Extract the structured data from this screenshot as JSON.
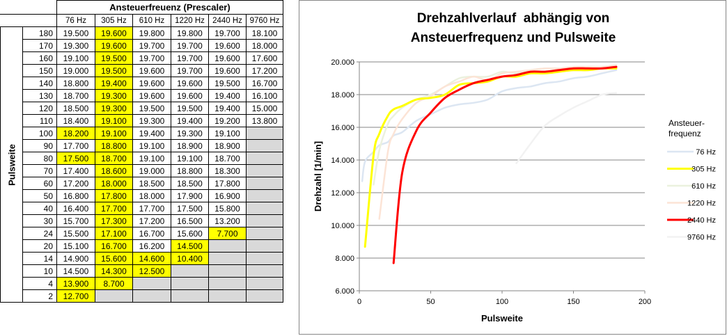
{
  "table": {
    "title": "Ansteuerfreuenz (Prescaler)",
    "row_label": "Pulsweite",
    "frequencies": [
      "76 Hz",
      "305 Hz",
      "610 Hz",
      "1220 Hz",
      "2440 Hz",
      "9760 Hz"
    ],
    "rows": [
      {
        "pw": "180",
        "cells": [
          [
            "19.500",
            ""
          ],
          [
            "19.600",
            "y"
          ],
          [
            "19.800",
            ""
          ],
          [
            "19.800",
            ""
          ],
          [
            "19.700",
            ""
          ],
          [
            "18.100",
            ""
          ]
        ]
      },
      {
        "pw": "170",
        "cells": [
          [
            "19.300",
            ""
          ],
          [
            "19.600",
            "y"
          ],
          [
            "19.700",
            ""
          ],
          [
            "19.700",
            ""
          ],
          [
            "19.600",
            ""
          ],
          [
            "18.000",
            ""
          ]
        ]
      },
      {
        "pw": "160",
        "cells": [
          [
            "19.100",
            ""
          ],
          [
            "19.500",
            "y"
          ],
          [
            "19.700",
            ""
          ],
          [
            "19.700",
            ""
          ],
          [
            "19.600",
            ""
          ],
          [
            "17.600",
            ""
          ]
        ]
      },
      {
        "pw": "150",
        "cells": [
          [
            "19.000",
            ""
          ],
          [
            "19.500",
            "y"
          ],
          [
            "19.600",
            ""
          ],
          [
            "19.700",
            ""
          ],
          [
            "19.600",
            ""
          ],
          [
            "17.200",
            ""
          ]
        ]
      },
      {
        "pw": "140",
        "cells": [
          [
            "18.800",
            ""
          ],
          [
            "19.400",
            "y"
          ],
          [
            "19.600",
            ""
          ],
          [
            "19.600",
            ""
          ],
          [
            "19.500",
            ""
          ],
          [
            "16.700",
            ""
          ]
        ]
      },
      {
        "pw": "130",
        "cells": [
          [
            "18.700",
            ""
          ],
          [
            "19.300",
            "y"
          ],
          [
            "19.600",
            ""
          ],
          [
            "19.600",
            ""
          ],
          [
            "19.400",
            ""
          ],
          [
            "16.100",
            ""
          ]
        ]
      },
      {
        "pw": "120",
        "cells": [
          [
            "18.500",
            ""
          ],
          [
            "19.300",
            "y"
          ],
          [
            "19.500",
            ""
          ],
          [
            "19.500",
            ""
          ],
          [
            "19.400",
            ""
          ],
          [
            "15.000",
            ""
          ]
        ]
      },
      {
        "pw": "110",
        "cells": [
          [
            "18.400",
            ""
          ],
          [
            "19.100",
            "y"
          ],
          [
            "19.300",
            ""
          ],
          [
            "19.400",
            ""
          ],
          [
            "19.200",
            ""
          ],
          [
            "13.800",
            ""
          ]
        ]
      },
      {
        "pw": "100",
        "cells": [
          [
            "18.200",
            "y"
          ],
          [
            "19.100",
            "y"
          ],
          [
            "19.400",
            ""
          ],
          [
            "19.300",
            ""
          ],
          [
            "19.100",
            ""
          ],
          [
            "",
            "g"
          ]
        ]
      },
      {
        "pw": "90",
        "cells": [
          [
            "17.700",
            ""
          ],
          [
            "18.800",
            "y"
          ],
          [
            "19.100",
            ""
          ],
          [
            "18.900",
            ""
          ],
          [
            "18.900",
            ""
          ],
          [
            "",
            "g"
          ]
        ]
      },
      {
        "pw": "80",
        "cells": [
          [
            "17.500",
            "y"
          ],
          [
            "18.700",
            "y"
          ],
          [
            "19.100",
            ""
          ],
          [
            "19.100",
            ""
          ],
          [
            "18.700",
            ""
          ],
          [
            "",
            "g"
          ]
        ]
      },
      {
        "pw": "70",
        "cells": [
          [
            "17.400",
            ""
          ],
          [
            "18.600",
            "y"
          ],
          [
            "19.000",
            ""
          ],
          [
            "18.800",
            ""
          ],
          [
            "18.300",
            ""
          ],
          [
            "",
            "g"
          ]
        ]
      },
      {
        "pw": "60",
        "cells": [
          [
            "17.200",
            ""
          ],
          [
            "18.000",
            "y"
          ],
          [
            "18.500",
            ""
          ],
          [
            "18.500",
            ""
          ],
          [
            "17.800",
            ""
          ],
          [
            "",
            "g"
          ]
        ]
      },
      {
        "pw": "50",
        "cells": [
          [
            "16.800",
            ""
          ],
          [
            "17.800",
            "y"
          ],
          [
            "18.000",
            ""
          ],
          [
            "17.900",
            ""
          ],
          [
            "16.900",
            ""
          ],
          [
            "",
            "g"
          ]
        ]
      },
      {
        "pw": "40",
        "cells": [
          [
            "16.400",
            ""
          ],
          [
            "17.700",
            "y"
          ],
          [
            "17.700",
            ""
          ],
          [
            "17.500",
            ""
          ],
          [
            "15.800",
            ""
          ],
          [
            "",
            "g"
          ]
        ]
      },
      {
        "pw": "30",
        "cells": [
          [
            "15.700",
            ""
          ],
          [
            "17.300",
            "y"
          ],
          [
            "17.200",
            ""
          ],
          [
            "16.500",
            ""
          ],
          [
            "13.200",
            ""
          ],
          [
            "",
            "g"
          ]
        ]
      },
      {
        "pw": "24",
        "cells": [
          [
            "15.500",
            ""
          ],
          [
            "17.100",
            "y"
          ],
          [
            "16.700",
            ""
          ],
          [
            "15.600",
            ""
          ],
          [
            "7.700",
            "y"
          ],
          [
            "",
            "g"
          ]
        ]
      },
      {
        "pw": "20",
        "cells": [
          [
            "15.100",
            ""
          ],
          [
            "16.700",
            "y"
          ],
          [
            "16.200",
            ""
          ],
          [
            "14.500",
            "y"
          ],
          [
            "",
            "g"
          ],
          [
            "",
            "g"
          ]
        ]
      },
      {
        "pw": "14",
        "cells": [
          [
            "14.900",
            ""
          ],
          [
            "15.600",
            "y"
          ],
          [
            "14.600",
            "y"
          ],
          [
            "10.400",
            "y"
          ],
          [
            "",
            "g"
          ],
          [
            "",
            "g"
          ]
        ]
      },
      {
        "pw": "10",
        "cells": [
          [
            "14.500",
            ""
          ],
          [
            "14.300",
            "y"
          ],
          [
            "12.500",
            "y"
          ],
          [
            "",
            "g"
          ],
          [
            "",
            "g"
          ],
          [
            "",
            "g"
          ]
        ]
      },
      {
        "pw": "4",
        "cells": [
          [
            "13.900",
            "y"
          ],
          [
            "8.700",
            "y"
          ],
          [
            "",
            "g"
          ],
          [
            "",
            "g"
          ],
          [
            "",
            "g"
          ],
          [
            "",
            "g"
          ]
        ]
      },
      {
        "pw": "2",
        "cells": [
          [
            "12.700",
            "y"
          ],
          [
            "",
            "g"
          ],
          [
            "",
            "g"
          ],
          [
            "",
            "g"
          ],
          [
            "",
            "g"
          ],
          [
            "",
            "g"
          ]
        ]
      }
    ]
  },
  "colors": {
    "highlight": "#ffff00",
    "empty_cell": "#d9d9d9",
    "grid": "#868686"
  },
  "chart_data": {
    "type": "line",
    "title": "Drehzahlverlauf  abhängig von\nAnsteuerfrequenz und Pulsweite",
    "xlabel": "Pulsweite",
    "ylabel": "Drehzahl [1/min]",
    "xlim": [
      0,
      200
    ],
    "ylim": [
      6000,
      20000
    ],
    "xticks": [
      "0",
      "50",
      "100",
      "150",
      "200"
    ],
    "yticks": [
      "6.000",
      "8.000",
      "10.000",
      "12.000",
      "14.000",
      "16.000",
      "18.000",
      "20.000"
    ],
    "grid": true,
    "legend_title": "Ansteuer-\nfrequenz",
    "legend_position": "right",
    "series": [
      {
        "name": "76 Hz",
        "color": "#dce6f2",
        "width": 2.5,
        "x": [
          2,
          4,
          10,
          14,
          20,
          24,
          30,
          40,
          50,
          60,
          70,
          80,
          90,
          100,
          110,
          120,
          130,
          140,
          150,
          160,
          170,
          180
        ],
        "y": [
          12700,
          13900,
          14500,
          14900,
          15100,
          15500,
          15700,
          16400,
          16800,
          17200,
          17400,
          17500,
          17700,
          18200,
          18400,
          18500,
          18700,
          18800,
          19000,
          19100,
          19300,
          19500
        ]
      },
      {
        "name": "305 Hz",
        "color": "#ffff00",
        "width": 3,
        "x": [
          4,
          10,
          14,
          20,
          24,
          30,
          40,
          50,
          60,
          70,
          80,
          90,
          100,
          110,
          120,
          130,
          140,
          150,
          160,
          170,
          180
        ],
        "y": [
          8700,
          14300,
          15600,
          16700,
          17100,
          17300,
          17700,
          17800,
          18000,
          18600,
          18700,
          18800,
          19100,
          19100,
          19300,
          19300,
          19400,
          19500,
          19500,
          19600,
          19600
        ]
      },
      {
        "name": "610 Hz",
        "color": "#ebf1de",
        "width": 2.5,
        "x": [
          10,
          14,
          20,
          24,
          30,
          40,
          50,
          60,
          70,
          80,
          90,
          100,
          110,
          120,
          130,
          140,
          150,
          160,
          170,
          180
        ],
        "y": [
          12500,
          14600,
          16200,
          16700,
          17200,
          17700,
          18000,
          18500,
          19000,
          19100,
          19100,
          19400,
          19300,
          19500,
          19600,
          19600,
          19600,
          19700,
          19700,
          19800
        ]
      },
      {
        "name": "1220 Hz",
        "color": "#fce4d6",
        "width": 2.5,
        "x": [
          14,
          20,
          24,
          30,
          40,
          50,
          60,
          70,
          80,
          90,
          100,
          110,
          120,
          130,
          140,
          150,
          160,
          170,
          180
        ],
        "y": [
          10400,
          14500,
          15600,
          16500,
          17500,
          17900,
          18500,
          18800,
          19100,
          18900,
          19300,
          19400,
          19500,
          19600,
          19600,
          19700,
          19700,
          19700,
          19800
        ]
      },
      {
        "name": "2440 Hz",
        "color": "#ff0000",
        "width": 3,
        "x": [
          24,
          30,
          40,
          50,
          60,
          70,
          80,
          90,
          100,
          110,
          120,
          130,
          140,
          150,
          160,
          170,
          180
        ],
        "y": [
          7700,
          13200,
          15800,
          16900,
          17800,
          18300,
          18700,
          18900,
          19100,
          19200,
          19400,
          19400,
          19500,
          19600,
          19600,
          19600,
          19700
        ]
      },
      {
        "name": "9760 Hz",
        "color": "#f2f2f2",
        "width": 2.5,
        "x": [
          110,
          120,
          130,
          140,
          150,
          160,
          170,
          180
        ],
        "y": [
          13800,
          15000,
          16100,
          16700,
          17200,
          17600,
          18000,
          18100
        ]
      }
    ]
  }
}
